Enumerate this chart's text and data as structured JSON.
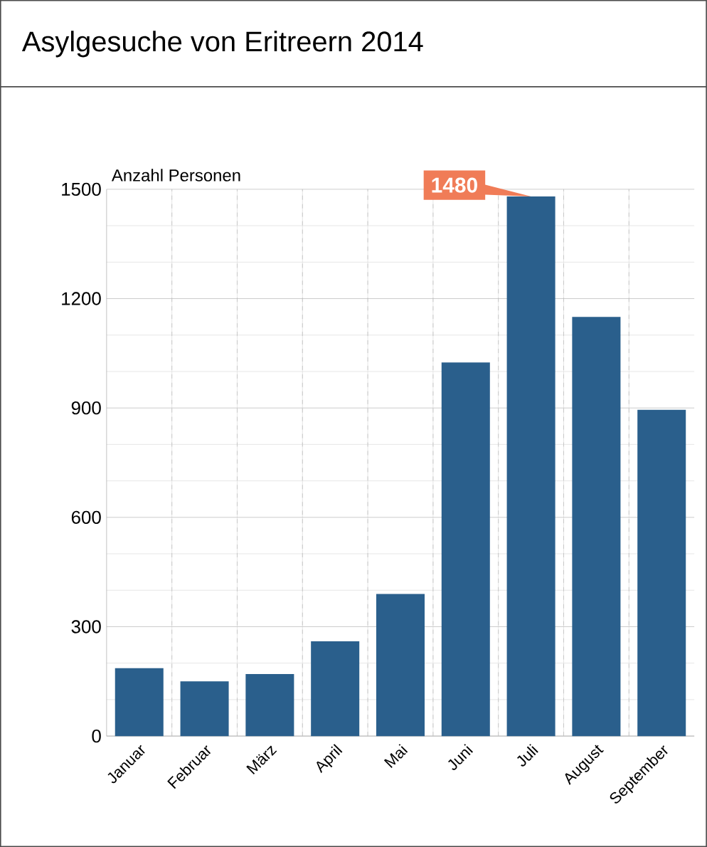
{
  "chart_data": {
    "type": "bar",
    "title": "Asylgesuche von Eritreern 2014",
    "ylabel": "Anzahl Personen",
    "categories": [
      "Januar",
      "Februar",
      "März",
      "April",
      "Mai",
      "Juni",
      "Juli",
      "August",
      "September"
    ],
    "values": [
      186,
      150,
      170,
      260,
      390,
      1025,
      1480,
      1150,
      895
    ],
    "color": "#2a5f8c",
    "ylim": [
      0,
      1500
    ],
    "yticks": [
      0,
      300,
      600,
      900,
      1200,
      1500
    ],
    "grid": true,
    "annotations": [
      {
        "text": "1480",
        "x": "Juli",
        "y": 1480
      }
    ]
  }
}
